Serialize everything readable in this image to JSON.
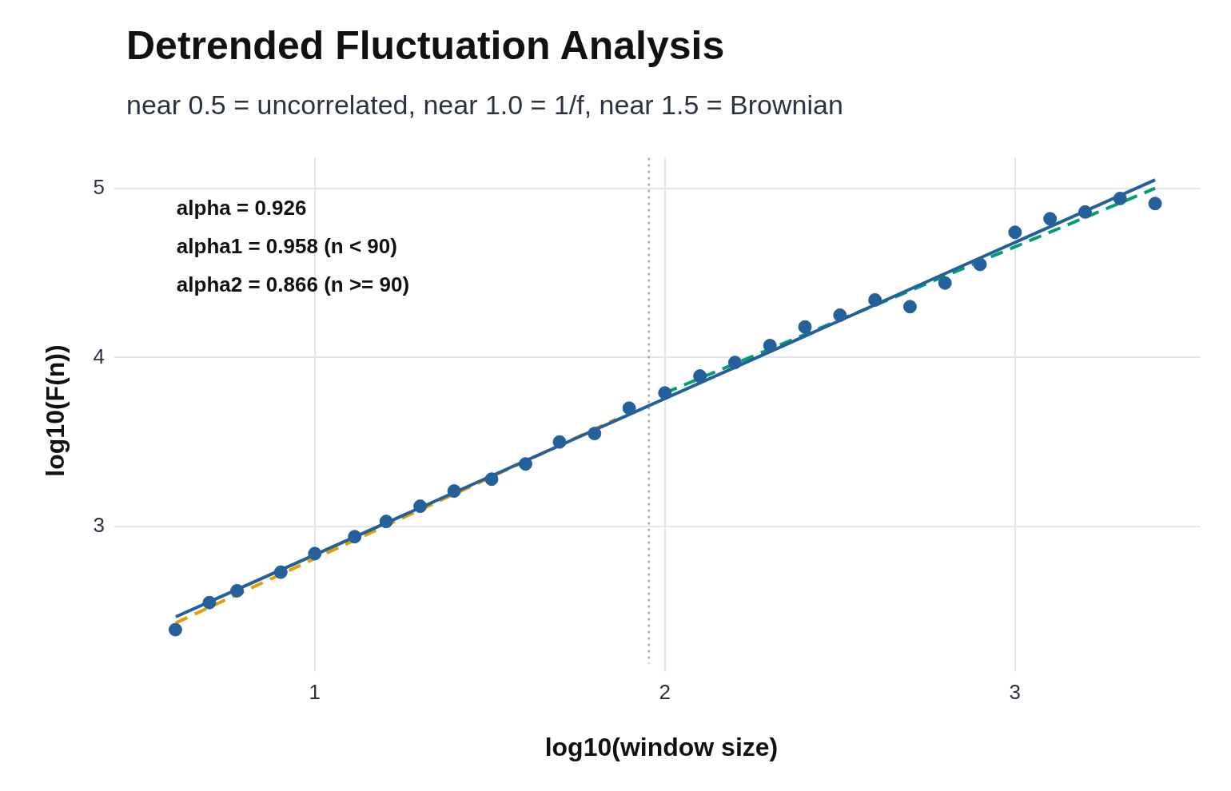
{
  "chart_data": {
    "type": "scatter",
    "title": "Detrended Fluctuation Analysis",
    "subtitle": "near 0.5 = uncorrelated, near 1.0 = 1/f, near 1.5 = Brownian",
    "xlabel": "log10(window size)",
    "ylabel": "log10(F(n))",
    "xlim": [
      0.45,
      3.53
    ],
    "ylim": [
      2.19,
      5.18
    ],
    "xticks": [
      1,
      2,
      3
    ],
    "yticks": [
      3,
      4,
      5
    ],
    "grid": true,
    "legend": false,
    "annotations": [
      "alpha = 0.926",
      "alpha1 = 0.958 (n < 90)",
      "alpha2 = 0.866 (n >= 90)"
    ],
    "ref_lines": [
      {
        "axis": "x",
        "value": 1.954,
        "color": "#999999",
        "line_style": "dotted"
      }
    ],
    "series": [
      {
        "type": "line",
        "color": "#24619a",
        "line_style": "solid",
        "marker": "none",
        "x": [
          0.603,
          3.4
        ],
        "values": [
          2.466,
          5.05
        ]
      },
      {
        "type": "line",
        "color": "#e69f00",
        "line_style": "dashed",
        "marker": "none",
        "x": [
          0.603,
          1.86
        ],
        "values": [
          2.43,
          3.634
        ]
      },
      {
        "type": "line",
        "color": "#009e73",
        "line_style": "dashed",
        "marker": "none",
        "x": [
          2.0,
          3.4
        ],
        "values": [
          3.79,
          5.0
        ]
      },
      {
        "type": "scatter",
        "color": "#24619a",
        "marker": "circle",
        "x": [
          0.602,
          0.699,
          0.778,
          0.903,
          1.0,
          1.114,
          1.204,
          1.301,
          1.398,
          1.505,
          1.602,
          1.699,
          1.799,
          1.898,
          2.0,
          2.1,
          2.2,
          2.3,
          2.4,
          2.5,
          2.6,
          2.7,
          2.8,
          2.9,
          3.0,
          3.1,
          3.2,
          3.3,
          3.4
        ],
        "values": [
          2.39,
          2.55,
          2.62,
          2.73,
          2.84,
          2.94,
          3.03,
          3.12,
          3.21,
          3.28,
          3.37,
          3.5,
          3.55,
          3.7,
          3.79,
          3.89,
          3.97,
          4.07,
          4.18,
          4.25,
          4.34,
          4.3,
          4.44,
          4.55,
          4.74,
          4.82,
          4.86,
          4.94,
          4.91
        ]
      }
    ]
  }
}
